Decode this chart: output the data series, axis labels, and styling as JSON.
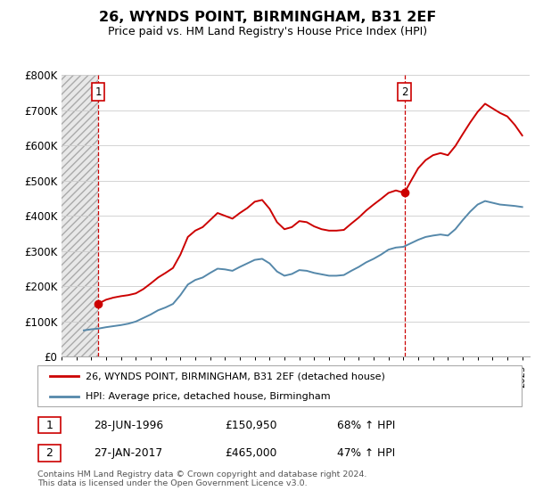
{
  "title": "26, WYNDS POINT, BIRMINGHAM, B31 2EF",
  "subtitle": "Price paid vs. HM Land Registry's House Price Index (HPI)",
  "ylim": [
    0,
    800000
  ],
  "yticks": [
    0,
    100000,
    200000,
    300000,
    400000,
    500000,
    600000,
    700000,
    800000
  ],
  "ytick_labels": [
    "£0",
    "£100K",
    "£200K",
    "£300K",
    "£400K",
    "£500K",
    "£600K",
    "£700K",
    "£800K"
  ],
  "red_line_color": "#cc0000",
  "blue_line_color": "#5588aa",
  "vline_color": "#cc0000",
  "legend_label_red": "26, WYNDS POINT, BIRMINGHAM, B31 2EF (detached house)",
  "legend_label_blue": "HPI: Average price, detached house, Birmingham",
  "sale1_date": "28-JUN-1996",
  "sale1_price": "£150,950",
  "sale1_hpi": "68% ↑ HPI",
  "sale2_date": "27-JAN-2017",
  "sale2_price": "£465,000",
  "sale2_hpi": "47% ↑ HPI",
  "footer": "Contains HM Land Registry data © Crown copyright and database right 2024.\nThis data is licensed under the Open Government Licence v3.0.",
  "sale1_year": 1996.48,
  "sale2_year": 2017.07,
  "sale1_value": 150950,
  "sale2_value": 465000,
  "hpi_red_indexed_data": [
    [
      1996.48,
      150950
    ],
    [
      1997.0,
      162000
    ],
    [
      1997.5,
      168000
    ],
    [
      1998.0,
      172000
    ],
    [
      1998.5,
      175000
    ],
    [
      1999.0,
      180000
    ],
    [
      1999.5,
      192000
    ],
    [
      2000.0,
      208000
    ],
    [
      2000.5,
      225000
    ],
    [
      2001.0,
      238000
    ],
    [
      2001.5,
      252000
    ],
    [
      2002.0,
      290000
    ],
    [
      2002.5,
      340000
    ],
    [
      2003.0,
      358000
    ],
    [
      2003.5,
      368000
    ],
    [
      2004.0,
      388000
    ],
    [
      2004.5,
      408000
    ],
    [
      2005.0,
      400000
    ],
    [
      2005.5,
      392000
    ],
    [
      2006.0,
      408000
    ],
    [
      2006.5,
      422000
    ],
    [
      2007.0,
      440000
    ],
    [
      2007.5,
      445000
    ],
    [
      2008.0,
      420000
    ],
    [
      2008.5,
      382000
    ],
    [
      2009.0,
      362000
    ],
    [
      2009.5,
      368000
    ],
    [
      2010.0,
      385000
    ],
    [
      2010.5,
      382000
    ],
    [
      2011.0,
      370000
    ],
    [
      2011.5,
      362000
    ],
    [
      2012.0,
      358000
    ],
    [
      2012.5,
      358000
    ],
    [
      2013.0,
      360000
    ],
    [
      2013.5,
      378000
    ],
    [
      2014.0,
      395000
    ],
    [
      2014.5,
      415000
    ],
    [
      2015.0,
      432000
    ],
    [
      2015.5,
      448000
    ],
    [
      2016.0,
      465000
    ],
    [
      2016.5,
      472000
    ],
    [
      2017.07,
      465000
    ],
    [
      2017.5,
      498000
    ],
    [
      2018.0,
      535000
    ],
    [
      2018.5,
      558000
    ],
    [
      2019.0,
      572000
    ],
    [
      2019.5,
      578000
    ],
    [
      2020.0,
      572000
    ],
    [
      2020.5,
      598000
    ],
    [
      2021.0,
      632000
    ],
    [
      2021.5,
      665000
    ],
    [
      2022.0,
      695000
    ],
    [
      2022.5,
      718000
    ],
    [
      2023.0,
      705000
    ],
    [
      2023.5,
      692000
    ],
    [
      2024.0,
      682000
    ],
    [
      2024.5,
      658000
    ],
    [
      2025.0,
      628000
    ]
  ],
  "hpi_blue_data": [
    [
      1995.5,
      75000
    ],
    [
      1996.0,
      78000
    ],
    [
      1996.48,
      80000
    ],
    [
      1997.0,
      84000
    ],
    [
      1997.5,
      87000
    ],
    [
      1998.0,
      90000
    ],
    [
      1998.5,
      94000
    ],
    [
      1999.0,
      100000
    ],
    [
      1999.5,
      110000
    ],
    [
      2000.0,
      120000
    ],
    [
      2000.5,
      132000
    ],
    [
      2001.0,
      140000
    ],
    [
      2001.5,
      150000
    ],
    [
      2002.0,
      175000
    ],
    [
      2002.5,
      205000
    ],
    [
      2003.0,
      218000
    ],
    [
      2003.5,
      225000
    ],
    [
      2004.0,
      238000
    ],
    [
      2004.5,
      250000
    ],
    [
      2005.0,
      248000
    ],
    [
      2005.5,
      244000
    ],
    [
      2006.0,
      255000
    ],
    [
      2006.5,
      265000
    ],
    [
      2007.0,
      275000
    ],
    [
      2007.5,
      278000
    ],
    [
      2008.0,
      265000
    ],
    [
      2008.5,
      242000
    ],
    [
      2009.0,
      230000
    ],
    [
      2009.5,
      235000
    ],
    [
      2010.0,
      246000
    ],
    [
      2010.5,
      244000
    ],
    [
      2011.0,
      238000
    ],
    [
      2011.5,
      234000
    ],
    [
      2012.0,
      230000
    ],
    [
      2012.5,
      230000
    ],
    [
      2013.0,
      232000
    ],
    [
      2013.5,
      244000
    ],
    [
      2014.0,
      255000
    ],
    [
      2014.5,
      268000
    ],
    [
      2015.0,
      278000
    ],
    [
      2015.5,
      290000
    ],
    [
      2016.0,
      304000
    ],
    [
      2016.5,
      310000
    ],
    [
      2017.0,
      312000
    ],
    [
      2017.5,
      322000
    ],
    [
      2018.0,
      332000
    ],
    [
      2018.5,
      340000
    ],
    [
      2019.0,
      344000
    ],
    [
      2019.5,
      347000
    ],
    [
      2020.0,
      344000
    ],
    [
      2020.5,
      362000
    ],
    [
      2021.0,
      388000
    ],
    [
      2021.5,
      412000
    ],
    [
      2022.0,
      432000
    ],
    [
      2022.5,
      442000
    ],
    [
      2023.0,
      437000
    ],
    [
      2023.5,
      432000
    ],
    [
      2024.0,
      430000
    ],
    [
      2024.5,
      428000
    ],
    [
      2025.0,
      425000
    ]
  ]
}
